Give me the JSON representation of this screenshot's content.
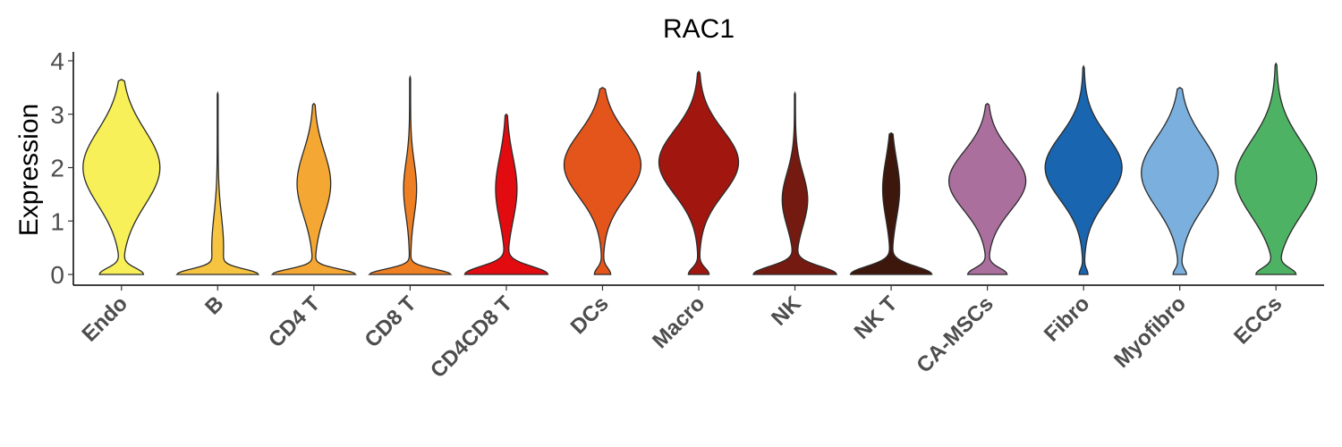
{
  "chart_data": {
    "type": "violin",
    "title": "RAC1",
    "xlabel": "",
    "ylabel": "Expression",
    "ylim": [
      -0.2,
      4.15
    ],
    "yticks": [
      0,
      1,
      2,
      3,
      4
    ],
    "legend": "none",
    "grid": false,
    "categories": [
      "Endo",
      "B",
      "CD4 T",
      "CD8 T",
      "CD4CD8 T",
      "DCs",
      "Macro",
      "NK",
      "NK T",
      "CA-MSCs",
      "Fibro",
      "Myofibro",
      "ECCs"
    ],
    "series": [
      {
        "category": "Endo",
        "color": "#F7F058",
        "max": 3.65,
        "modes": [
          [
            0.0,
            0.55,
            0.12
          ],
          [
            2.0,
            1.0,
            0.7
          ]
        ],
        "width": 0.85
      },
      {
        "category": "B",
        "color": "#F7C442",
        "max": 3.4,
        "modes": [
          [
            0.0,
            1.0,
            0.1
          ],
          [
            0.5,
            0.15,
            0.6
          ]
        ],
        "width": 0.9
      },
      {
        "category": "CD4 T",
        "color": "#F5A733",
        "max": 3.2,
        "modes": [
          [
            0.0,
            1.0,
            0.1
          ],
          [
            1.7,
            0.4,
            0.6
          ]
        ],
        "width": 0.92
      },
      {
        "category": "CD8 T",
        "color": "#EE7F22",
        "max": 3.7,
        "modes": [
          [
            0.0,
            1.0,
            0.1
          ],
          [
            1.6,
            0.15,
            0.5
          ]
        ],
        "width": 0.9
      },
      {
        "category": "CD4CD8 T",
        "color": "#E10B10",
        "max": 3.0,
        "modes": [
          [
            0.0,
            1.0,
            0.15
          ],
          [
            1.6,
            0.25,
            0.6
          ]
        ],
        "width": 0.92
      },
      {
        "category": "DCs",
        "color": "#E4551B",
        "max": 3.5,
        "modes": [
          [
            0.0,
            0.2,
            0.12
          ],
          [
            2.05,
            1.0,
            0.6
          ]
        ],
        "width": 0.85
      },
      {
        "category": "Macro",
        "color": "#A11710",
        "max": 3.8,
        "modes": [
          [
            0.0,
            0.25,
            0.12
          ],
          [
            2.1,
            1.0,
            0.6
          ]
        ],
        "width": 0.88
      },
      {
        "category": "NK",
        "color": "#741A10",
        "max": 3.4,
        "modes": [
          [
            0.0,
            1.0,
            0.15
          ],
          [
            1.4,
            0.3,
            0.5
          ]
        ],
        "width": 0.92
      },
      {
        "category": "NK T",
        "color": "#3D160C",
        "max": 2.65,
        "modes": [
          [
            0.0,
            1.0,
            0.15
          ],
          [
            1.6,
            0.2,
            0.55
          ]
        ],
        "width": 0.9
      },
      {
        "category": "CA-MSCs",
        "color": "#AA6F9D",
        "max": 3.2,
        "modes": [
          [
            0.0,
            0.5,
            0.12
          ],
          [
            1.75,
            1.0,
            0.55
          ]
        ],
        "width": 0.85
      },
      {
        "category": "Fibro",
        "color": "#1A65B0",
        "max": 3.9,
        "modes": [
          [
            0.0,
            0.1,
            0.1
          ],
          [
            2.0,
            1.0,
            0.6
          ]
        ],
        "width": 0.85
      },
      {
        "category": "Myofibro",
        "color": "#7BB0DE",
        "max": 3.5,
        "modes": [
          [
            0.0,
            0.15,
            0.1
          ],
          [
            1.9,
            1.0,
            0.65
          ]
        ],
        "width": 0.85
      },
      {
        "category": "ECCs",
        "color": "#4EB264",
        "max": 3.95,
        "modes": [
          [
            0.0,
            0.45,
            0.12
          ],
          [
            1.8,
            1.0,
            0.7
          ]
        ],
        "width": 0.9
      }
    ]
  }
}
